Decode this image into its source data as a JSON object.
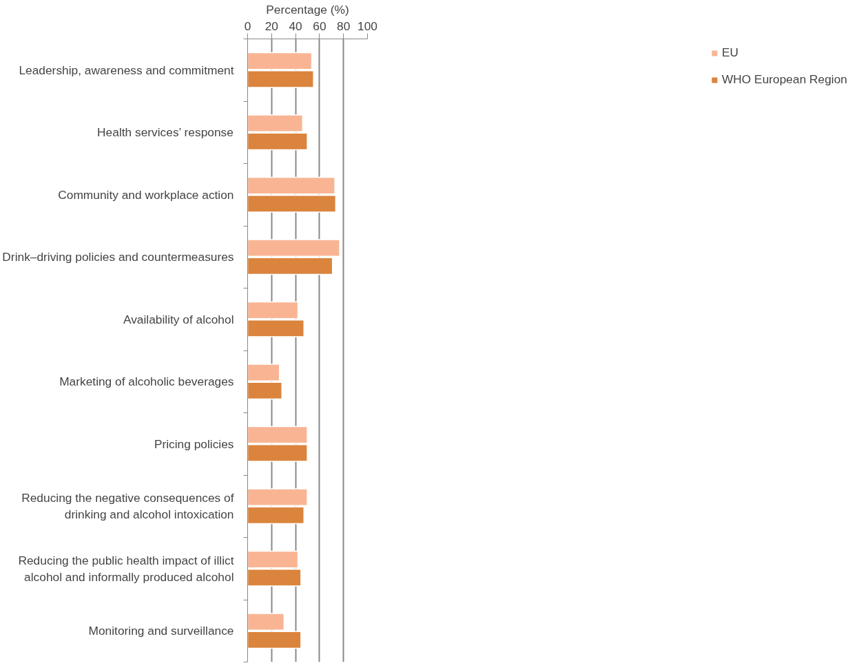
{
  "chart_data": {
    "type": "bar",
    "orientation": "horizontal",
    "xlabel": "Percentage (%)",
    "categories": [
      "Leadership, awareness and commitment",
      "Health services’ response",
      "Community and workplace action",
      "Drink–driving policies and countermeasures",
      "Availability of alcohol",
      "Marketing of alcoholic beverages",
      "Pricing policies",
      "Reducing the negative consequences of\ndrinking and alcohol intoxication",
      "Reducing the public health impact of illict\nalcohol and informally produced alcohol",
      "Monitoring and surveillance"
    ],
    "series": [
      {
        "name": "EU",
        "color": "#f9b593",
        "values": [
          53.5,
          45.9,
          72.8,
          76.8,
          42.0,
          26.6,
          49.8,
          49.8,
          42.0,
          30.4
        ]
      },
      {
        "name": "WHO European Region",
        "color": "#db843d",
        "values": [
          55.0,
          49.8,
          73.5,
          70.8,
          47.0,
          28.6,
          49.8,
          47.0,
          44.5,
          44.5
        ]
      }
    ],
    "xlim": [
      0,
      100
    ],
    "xticks": [
      0,
      20,
      40,
      60,
      80,
      100
    ],
    "grid": "x",
    "legend": "right"
  }
}
